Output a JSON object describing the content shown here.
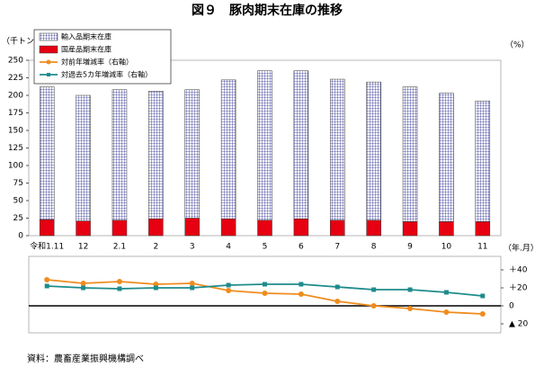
{
  "chart_data": {
    "type": "bar",
    "title": "図９　豚肉期末在庫の推移",
    "y_label": "（千トン）",
    "y2_label": "（%）",
    "x_label": "（年.月）",
    "source": "資料：農畜産業振興機構調べ",
    "categories": [
      "令和1.11",
      "12",
      "2.1",
      "2",
      "3",
      "4",
      "5",
      "6",
      "7",
      "8",
      "9",
      "10",
      "11"
    ],
    "series": [
      {
        "name": "輸入品期末在庫",
        "type": "bar",
        "color": "#2e3192",
        "values": [
          189,
          179,
          186,
          182,
          183,
          198,
          213,
          211,
          201,
          197,
          192,
          183,
          172
        ]
      },
      {
        "name": "国産品期末在庫",
        "type": "bar",
        "color": "#e60012",
        "values": [
          23,
          21,
          22,
          24,
          25,
          24,
          22,
          24,
          22,
          22,
          20,
          20,
          20
        ]
      },
      {
        "name": "対前年増減率（右軸）",
        "type": "line",
        "axis": "y2",
        "marker": "circle",
        "color": "#f08c1e",
        "values": [
          29,
          25,
          27,
          24,
          25,
          17,
          14,
          13,
          5,
          0,
          -3,
          -7,
          -9
        ]
      },
      {
        "name": "対過去5カ年増減率（右軸）",
        "type": "line",
        "axis": "y2",
        "marker": "square",
        "color": "#1f8b8b",
        "values": [
          22,
          20,
          19,
          20,
          20,
          23,
          24,
          24,
          21,
          18,
          18,
          15,
          11
        ]
      }
    ],
    "ylim": [
      0,
      250
    ],
    "yticks": [
      0,
      25,
      50,
      75,
      100,
      125,
      150,
      175,
      200,
      225,
      250
    ],
    "y2lim": [
      -30,
      55
    ],
    "y2ticks": [
      {
        "value": 40,
        "label": "＋40"
      },
      {
        "value": 20,
        "label": "＋20"
      },
      0,
      {
        "value": -20,
        "label": "▲ 20"
      }
    ],
    "zero_line": true,
    "legend": "upper left"
  }
}
